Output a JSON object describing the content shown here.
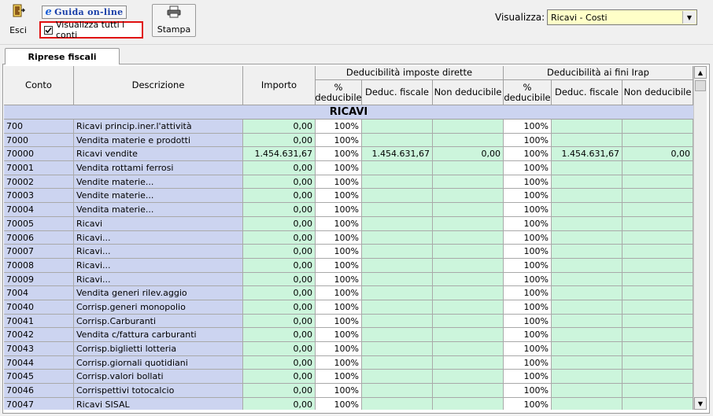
{
  "toolbar": {
    "exit_label": "Esci",
    "online_help_icon_glyph": "e",
    "online_help_label": "Guida on-line",
    "show_all_checkbox_label": "Visualizza tutti i conti",
    "show_all_checked": true,
    "print_label": "Stampa",
    "view_label": "Visualizza:",
    "view_value": "Ricavi - Costi"
  },
  "tabs": [
    {
      "label": "Riprese fiscali",
      "active": true
    }
  ],
  "grid": {
    "headers": {
      "conto": "Conto",
      "descrizione": "Descrizione",
      "importo": "Importo",
      "group1": "Deducibilità imposte dirette",
      "group2": "Deducibilità ai fini Irap",
      "pct_deducibile_1": "%",
      "pct_deducibile_2": "deducibile",
      "deduc_fiscale": "Deduc. fiscale",
      "non_deducibile": "Non deducibile"
    },
    "section_title": "RICAVI",
    "rows": [
      {
        "conto": "700",
        "descrizione": "Ricavi princip.iner.l'attività",
        "importo": "0,00",
        "pct1": "100%",
        "df1": "",
        "nd1": "",
        "pct2": "100%",
        "df2": "",
        "nd2": ""
      },
      {
        "conto": "7000",
        "descrizione": "Vendita materie e prodotti",
        "importo": "0,00",
        "pct1": "100%",
        "df1": "",
        "nd1": "",
        "pct2": "100%",
        "df2": "",
        "nd2": ""
      },
      {
        "conto": "70000",
        "descrizione": "Ricavi vendite",
        "importo": "1.454.631,67",
        "pct1": "100%",
        "df1": "1.454.631,67",
        "nd1": "0,00",
        "pct2": "100%",
        "df2": "1.454.631,67",
        "nd2": "0,00"
      },
      {
        "conto": "70001",
        "descrizione": "Vendita rottami ferrosi",
        "importo": "0,00",
        "pct1": "100%",
        "df1": "",
        "nd1": "",
        "pct2": "100%",
        "df2": "",
        "nd2": ""
      },
      {
        "conto": "70002",
        "descrizione": "Vendite materie...",
        "importo": "0,00",
        "pct1": "100%",
        "df1": "",
        "nd1": "",
        "pct2": "100%",
        "df2": "",
        "nd2": ""
      },
      {
        "conto": "70003",
        "descrizione": "Vendite materie...",
        "importo": "0,00",
        "pct1": "100%",
        "df1": "",
        "nd1": "",
        "pct2": "100%",
        "df2": "",
        "nd2": ""
      },
      {
        "conto": "70004",
        "descrizione": "Vendita materie...",
        "importo": "0,00",
        "pct1": "100%",
        "df1": "",
        "nd1": "",
        "pct2": "100%",
        "df2": "",
        "nd2": ""
      },
      {
        "conto": "70005",
        "descrizione": "Ricavi",
        "importo": "0,00",
        "pct1": "100%",
        "df1": "",
        "nd1": "",
        "pct2": "100%",
        "df2": "",
        "nd2": ""
      },
      {
        "conto": "70006",
        "descrizione": "Ricavi...",
        "importo": "0,00",
        "pct1": "100%",
        "df1": "",
        "nd1": "",
        "pct2": "100%",
        "df2": "",
        "nd2": ""
      },
      {
        "conto": "70007",
        "descrizione": "Ricavi...",
        "importo": "0,00",
        "pct1": "100%",
        "df1": "",
        "nd1": "",
        "pct2": "100%",
        "df2": "",
        "nd2": ""
      },
      {
        "conto": "70008",
        "descrizione": "Ricavi...",
        "importo": "0,00",
        "pct1": "100%",
        "df1": "",
        "nd1": "",
        "pct2": "100%",
        "df2": "",
        "nd2": ""
      },
      {
        "conto": "70009",
        "descrizione": "Ricavi...",
        "importo": "0,00",
        "pct1": "100%",
        "df1": "",
        "nd1": "",
        "pct2": "100%",
        "df2": "",
        "nd2": ""
      },
      {
        "conto": "7004",
        "descrizione": "Vendita generi rilev.aggio",
        "importo": "0,00",
        "pct1": "100%",
        "df1": "",
        "nd1": "",
        "pct2": "100%",
        "df2": "",
        "nd2": ""
      },
      {
        "conto": "70040",
        "descrizione": "Corrisp.generi monopolio",
        "importo": "0,00",
        "pct1": "100%",
        "df1": "",
        "nd1": "",
        "pct2": "100%",
        "df2": "",
        "nd2": ""
      },
      {
        "conto": "70041",
        "descrizione": "Corrisp.Carburanti",
        "importo": "0,00",
        "pct1": "100%",
        "df1": "",
        "nd1": "",
        "pct2": "100%",
        "df2": "",
        "nd2": ""
      },
      {
        "conto": "70042",
        "descrizione": "Vendita c/fattura carburanti",
        "importo": "0,00",
        "pct1": "100%",
        "df1": "",
        "nd1": "",
        "pct2": "100%",
        "df2": "",
        "nd2": ""
      },
      {
        "conto": "70043",
        "descrizione": "Corrisp.biglietti lotteria",
        "importo": "0,00",
        "pct1": "100%",
        "df1": "",
        "nd1": "",
        "pct2": "100%",
        "df2": "",
        "nd2": ""
      },
      {
        "conto": "70044",
        "descrizione": "Corrisp.giornali quotidiani",
        "importo": "0,00",
        "pct1": "100%",
        "df1": "",
        "nd1": "",
        "pct2": "100%",
        "df2": "",
        "nd2": ""
      },
      {
        "conto": "70045",
        "descrizione": "Corrisp.valori bollati",
        "importo": "0,00",
        "pct1": "100%",
        "df1": "",
        "nd1": "",
        "pct2": "100%",
        "df2": "",
        "nd2": ""
      },
      {
        "conto": "70046",
        "descrizione": "Corrispettivi totocalcio",
        "importo": "0,00",
        "pct1": "100%",
        "df1": "",
        "nd1": "",
        "pct2": "100%",
        "df2": "",
        "nd2": ""
      },
      {
        "conto": "70047",
        "descrizione": "Ricavi SISAL",
        "importo": "0,00",
        "pct1": "100%",
        "df1": "",
        "nd1": "",
        "pct2": "100%",
        "df2": "",
        "nd2": ""
      }
    ]
  },
  "icons": {
    "exit": "door-exit-icon",
    "help": "internet-explorer-e-icon",
    "print": "printer-icon"
  },
  "colors": {
    "row_key_bg": "#ccd4f0",
    "editable_bg": "#ccf5dc",
    "highlight_border": "#e01010",
    "select_bg": "#ffffc8"
  }
}
